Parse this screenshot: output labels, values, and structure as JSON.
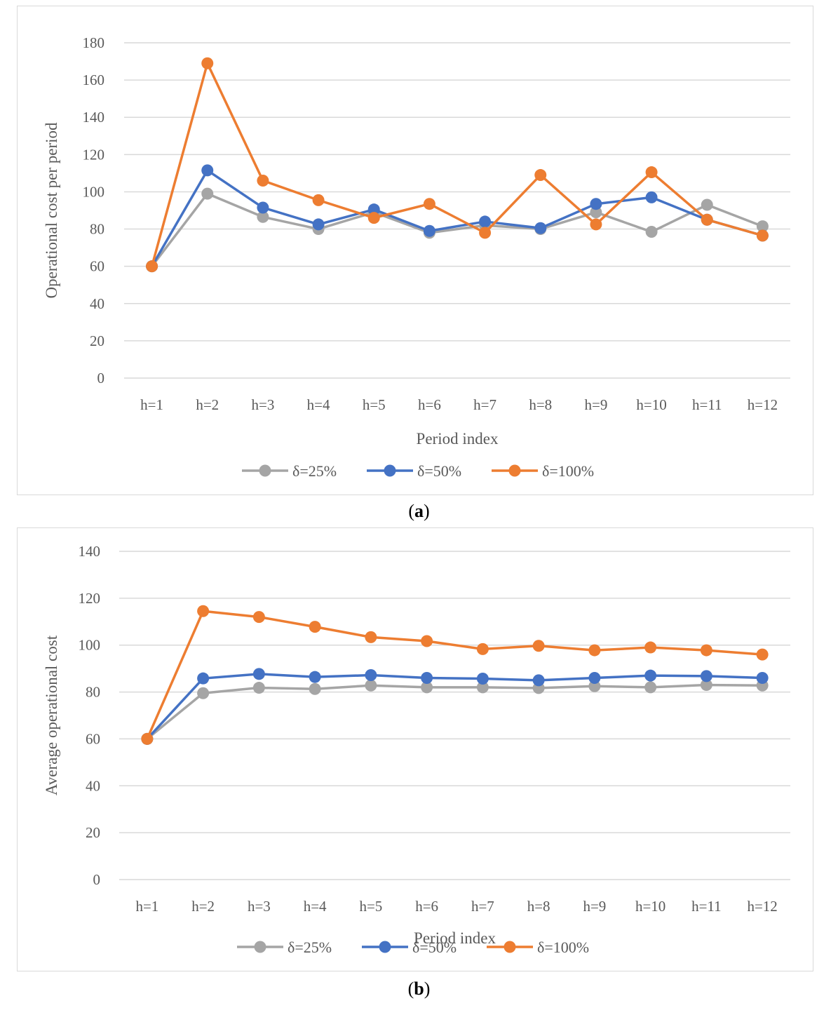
{
  "panels": {
    "a_label": "a",
    "b_label": "b"
  },
  "chart_data": [
    {
      "type": "line",
      "title": "",
      "xlabel": "Period index",
      "ylabel": "Operational cost per period",
      "ylim": [
        0,
        180
      ],
      "yticks": [
        0,
        20,
        40,
        60,
        80,
        100,
        120,
        140,
        160,
        180
      ],
      "grid": true,
      "legend_position": "bottom",
      "categories": [
        "h=1",
        "h=2",
        "h=3",
        "h=4",
        "h=5",
        "h=6",
        "h=7",
        "h=8",
        "h=9",
        "h=10",
        "h=11",
        "h=12"
      ],
      "series": [
        {
          "name": "δ=25%",
          "color": "#a5a5a5",
          "values": [
            60,
            99,
            86.5,
            80,
            89,
            78,
            82,
            80,
            89,
            78.5,
            93,
            81.5
          ]
        },
        {
          "name": "δ=50%",
          "color": "#4472c4",
          "values": [
            60,
            111.5,
            91.5,
            82.5,
            90.5,
            79,
            84,
            80.5,
            93.5,
            97,
            85,
            76.5
          ]
        },
        {
          "name": "δ=100%",
          "color": "#ed7d31",
          "values": [
            60,
            169,
            106,
            95.5,
            86,
            93.5,
            78,
            109,
            82.5,
            110.5,
            85,
            76.5
          ]
        }
      ]
    },
    {
      "type": "line",
      "title": "",
      "xlabel": "Period index",
      "ylabel": "Average operational cost",
      "ylim": [
        0,
        140
      ],
      "yticks": [
        0,
        20,
        40,
        60,
        80,
        100,
        120,
        140
      ],
      "grid": true,
      "legend_position": "bottom",
      "categories": [
        "h=1",
        "h=2",
        "h=3",
        "h=4",
        "h=5",
        "h=6",
        "h=7",
        "h=8",
        "h=9",
        "h=10",
        "h=11",
        "h=12"
      ],
      "series": [
        {
          "name": "δ=25%",
          "color": "#a5a5a5",
          "values": [
            60,
            79.5,
            81.8,
            81.3,
            82.8,
            82,
            82,
            81.7,
            82.5,
            82,
            83,
            82.8
          ]
        },
        {
          "name": "δ=50%",
          "color": "#4472c4",
          "values": [
            60,
            85.8,
            87.7,
            86.4,
            87.2,
            86,
            85.7,
            85,
            86,
            87,
            86.8,
            86
          ]
        },
        {
          "name": "δ=100%",
          "color": "#ed7d31",
          "values": [
            60,
            114.5,
            112,
            107.8,
            103.4,
            101.7,
            98.3,
            99.7,
            97.8,
            99,
            97.8,
            96
          ]
        }
      ]
    }
  ]
}
